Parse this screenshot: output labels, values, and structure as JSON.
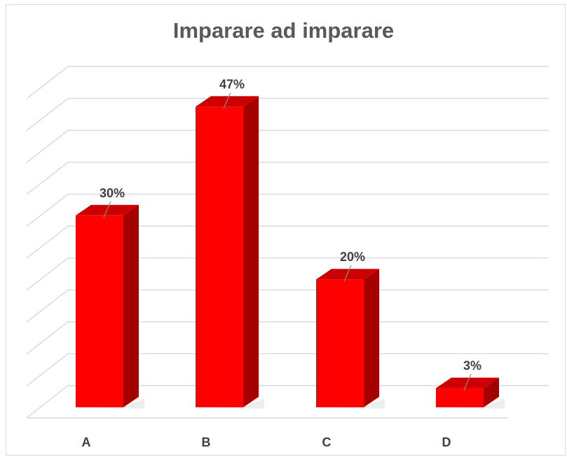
{
  "chart_data": {
    "type": "bar",
    "title": "Imparare ad imparare",
    "categories": [
      "A",
      "B",
      "C",
      "D"
    ],
    "values": [
      30,
      47,
      20,
      3
    ],
    "data_labels": [
      "30%",
      "47%",
      "20%",
      "3%"
    ],
    "xlabel": "",
    "ylabel": "",
    "ylim": [
      0,
      50
    ],
    "grid": true,
    "legend": "none",
    "style": "3d-column"
  },
  "colors": {
    "bar_front": "#ff0000",
    "bar_side": "#a50000",
    "bar_top": "#cc0000",
    "grid": "#d9d9d9",
    "title": "#595959",
    "labels": "#404040"
  }
}
